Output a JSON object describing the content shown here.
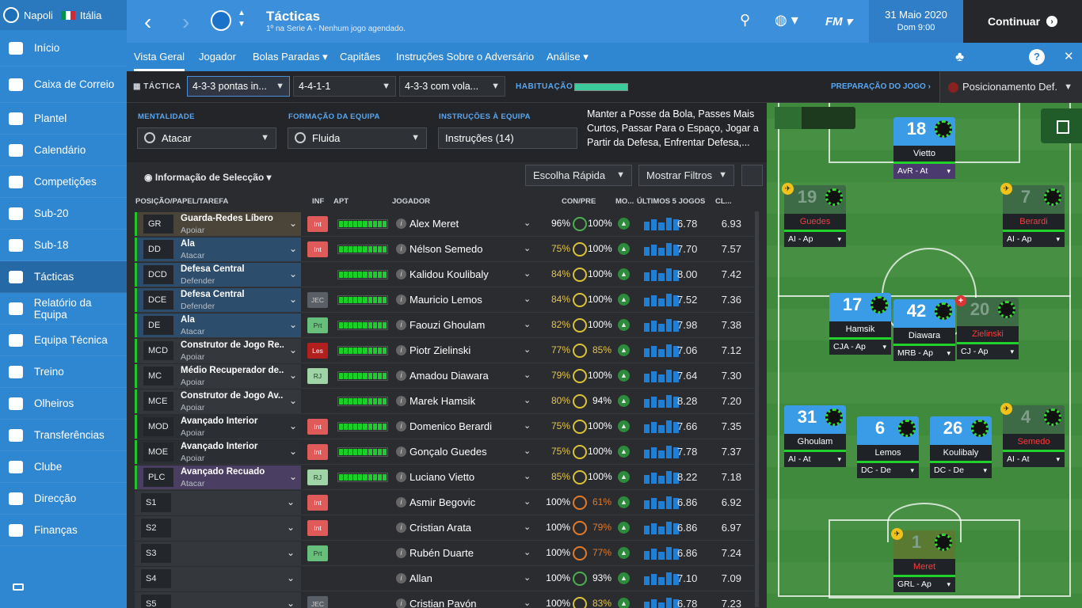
{
  "club": {
    "name": "Napoli",
    "country": "Itália"
  },
  "sidebar": {
    "items": [
      {
        "label": "Início",
        "icon": "home-icon"
      },
      {
        "label": "Caixa de Correio",
        "icon": "inbox-icon"
      },
      {
        "label": "Plantel",
        "icon": "squad-icon"
      },
      {
        "label": "Calendário",
        "icon": "calendar-icon"
      },
      {
        "label": "Competições",
        "icon": "trophy-icon"
      },
      {
        "label": "Sub-20",
        "icon": "u20-icon"
      },
      {
        "label": "Sub-18",
        "icon": "u18-icon"
      },
      {
        "label": "Tácticas",
        "icon": "tactics-icon"
      },
      {
        "label": "Relatório da Equipa",
        "icon": "report-icon"
      },
      {
        "label": "Equipa Técnica",
        "icon": "staff-icon"
      },
      {
        "label": "Treino",
        "icon": "training-icon"
      },
      {
        "label": "Olheiros",
        "icon": "scouting-icon"
      },
      {
        "label": "Transferências",
        "icon": "transfers-icon"
      },
      {
        "label": "Clube",
        "icon": "club-icon"
      },
      {
        "label": "Direcção",
        "icon": "board-icon"
      },
      {
        "label": "Finanças",
        "icon": "finances-icon"
      }
    ]
  },
  "header": {
    "title": "Tácticas",
    "subtitle": "1º na Serie A - Nenhum jogo agendado.",
    "date": "31 Maio 2020",
    "time": "Dom 9:00",
    "continue_label": "Continuar",
    "fm_logo": "FM"
  },
  "tabs": [
    "Vista Geral",
    "Jogador",
    "Bolas Paradas",
    "Capitães",
    "Instruções Sobre o Adversário",
    "Análise"
  ],
  "tacticbar": {
    "label": "TÁCTICA",
    "tactics": [
      "4-3-3 pontas in...",
      "4-4-1-1",
      "4-3-3 com vola..."
    ],
    "habituation_label": "HABITUAÇÃO",
    "prep_label": "PREPARAÇÃO DO JOGO ›",
    "position_label": "Posicionamento Def."
  },
  "settings": {
    "mentality_label": "MENTALIDADE",
    "mentality_value": "Atacar",
    "formation_label": "FORMAÇÃO DA EQUIPA",
    "formation_value": "Fluida",
    "instructions_label": "INSTRUÇÕES À EQUIPA",
    "instructions_value": "Instruções (14)",
    "summary": "Manter a Posse da Bola, Passes Mais Curtos, Passar Para o Espaço, Jogar a Partir da Defesa, Enfrentar Defesa,..."
  },
  "table": {
    "selection_label": "Informação de Selecção",
    "quick_pick": "Escolha Rápida",
    "show_filters": "Mostrar Filtros",
    "headers": {
      "pos": "POSIÇÃO/PAPEL/TAREFA",
      "inf": "INF",
      "apt": "APT",
      "player": "JOGADOR",
      "con": "CON/PRE",
      "mo": "MO...",
      "last5": "ÚLTIMOS 5 JOGOS",
      "cl": "CL..."
    },
    "rows": [
      {
        "pos": "GR",
        "role": "Guarda-Redes Líbero",
        "duty": "Apoiar",
        "inf": "Int",
        "player": "Alex Meret",
        "con": "96%",
        "pre": "100%",
        "avg": "6.78",
        "cl": "6.93",
        "color": "#4a4538"
      },
      {
        "pos": "DD",
        "role": "Ala",
        "duty": "Atacar",
        "inf": "Int",
        "player": "Nélson Semedo",
        "con": "75%",
        "pre": "100%",
        "avg": "7.70",
        "cl": "7.57",
        "color": "#2d4d6c"
      },
      {
        "pos": "DCD",
        "role": "Defesa Central",
        "duty": "Defender",
        "inf": "",
        "player": "Kalidou Koulibaly",
        "con": "84%",
        "pre": "100%",
        "avg": "8.00",
        "cl": "7.42",
        "color": "#2d4d6c"
      },
      {
        "pos": "DCE",
        "role": "Defesa Central",
        "duty": "Defender",
        "inf": "JEC",
        "player": "Mauricio Lemos",
        "con": "84%",
        "pre": "100%",
        "avg": "7.52",
        "cl": "7.36",
        "color": "#2d4d6c"
      },
      {
        "pos": "DE",
        "role": "Ala",
        "duty": "Atacar",
        "inf": "Prt",
        "player": "Faouzi Ghoulam",
        "con": "82%",
        "pre": "100%",
        "avg": "7.98",
        "cl": "7.38",
        "color": "#2d4d6c"
      },
      {
        "pos": "MCD",
        "role": "Construtor de Jogo Re...",
        "duty": "Apoiar",
        "inf": "Les",
        "player": "Piotr Zielinski",
        "con": "77%",
        "pre": "85%",
        "avg": "7.06",
        "cl": "7.12",
        "color": "#34373c"
      },
      {
        "pos": "MC",
        "role": "Médio Recuperador de...",
        "duty": "Apoiar",
        "inf": "RJ",
        "player": "Amadou Diawara",
        "con": "79%",
        "pre": "100%",
        "avg": "7.64",
        "cl": "7.30",
        "color": "#34373c"
      },
      {
        "pos": "MCE",
        "role": "Construtor de Jogo Av...",
        "duty": "Apoiar",
        "inf": "",
        "player": "Marek Hamsik",
        "con": "80%",
        "pre": "94%",
        "avg": "8.28",
        "cl": "7.20",
        "color": "#34373c"
      },
      {
        "pos": "MOD",
        "role": "Avançado Interior",
        "duty": "Apoiar",
        "inf": "Int",
        "player": "Domenico Berardi",
        "con": "75%",
        "pre": "100%",
        "avg": "7.66",
        "cl": "7.35",
        "color": "#2b2e32"
      },
      {
        "pos": "MOE",
        "role": "Avançado Interior",
        "duty": "Apoiar",
        "inf": "Int",
        "player": "Gonçalo Guedes",
        "con": "75%",
        "pre": "100%",
        "avg": "7.78",
        "cl": "7.37",
        "color": "#2b2e32"
      },
      {
        "pos": "PLC",
        "role": "Avançado Recuado",
        "duty": "Atacar",
        "inf": "RJ",
        "player": "Luciano Vietto",
        "con": "85%",
        "pre": "100%",
        "avg": "8.22",
        "cl": "7.18",
        "color": "#4a3f63"
      },
      {
        "pos": "S1",
        "role": "",
        "duty": "",
        "inf": "Int",
        "player": "Asmir Begovic",
        "con": "100%",
        "pre": "61%",
        "avg": "6.86",
        "cl": "6.92",
        "color": "#34373c"
      },
      {
        "pos": "S2",
        "role": "",
        "duty": "",
        "inf": "Int",
        "player": "Cristian Arata",
        "con": "100%",
        "pre": "79%",
        "avg": "6.86",
        "cl": "6.97",
        "color": "#34373c"
      },
      {
        "pos": "S3",
        "role": "",
        "duty": "",
        "inf": "Prt",
        "player": "Rubén Duarte",
        "con": "100%",
        "pre": "77%",
        "avg": "6.86",
        "cl": "7.24",
        "color": "#34373c"
      },
      {
        "pos": "S4",
        "role": "",
        "duty": "",
        "inf": "",
        "player": "Allan",
        "con": "100%",
        "pre": "93%",
        "avg": "7.10",
        "cl": "7.09",
        "color": "#34373c"
      },
      {
        "pos": "S5",
        "role": "",
        "duty": "",
        "inf": "JEC",
        "player": "Cristian Pavón",
        "con": "100%",
        "pre": "83%",
        "avg": "6.78",
        "cl": "7.23",
        "color": "#34373c"
      }
    ]
  },
  "pitch": {
    "cards": [
      {
        "num": "18",
        "name": "Vietto",
        "role": "AvR - At",
        "purple": true
      },
      {
        "num": "19",
        "name": "Guedes",
        "role": "AI - Ap",
        "out": true,
        "red": true,
        "plane": true
      },
      {
        "num": "7",
        "name": "Berardi",
        "role": "AI - Ap",
        "out": true,
        "red": true,
        "plane": true
      },
      {
        "num": "17",
        "name": "Hamsik",
        "role": "CJA - Ap"
      },
      {
        "num": "42",
        "name": "Diawara",
        "role": "MRB - Ap"
      },
      {
        "num": "20",
        "name": "Zielinski",
        "role": "CJ - Ap",
        "out": true,
        "red": true,
        "injury": true
      },
      {
        "num": "31",
        "name": "Ghoulam",
        "role": "AI - At"
      },
      {
        "num": "6",
        "name": "Lemos",
        "role": "DC - De"
      },
      {
        "num": "26",
        "name": "Koulibaly",
        "role": "DC - De"
      },
      {
        "num": "4",
        "name": "Semedo",
        "role": "AI - At",
        "out": true,
        "red": true,
        "plane": true
      },
      {
        "num": "1",
        "name": "Meret",
        "role": "GRL - Ap",
        "gk": true,
        "red": true,
        "plane": true
      }
    ]
  }
}
